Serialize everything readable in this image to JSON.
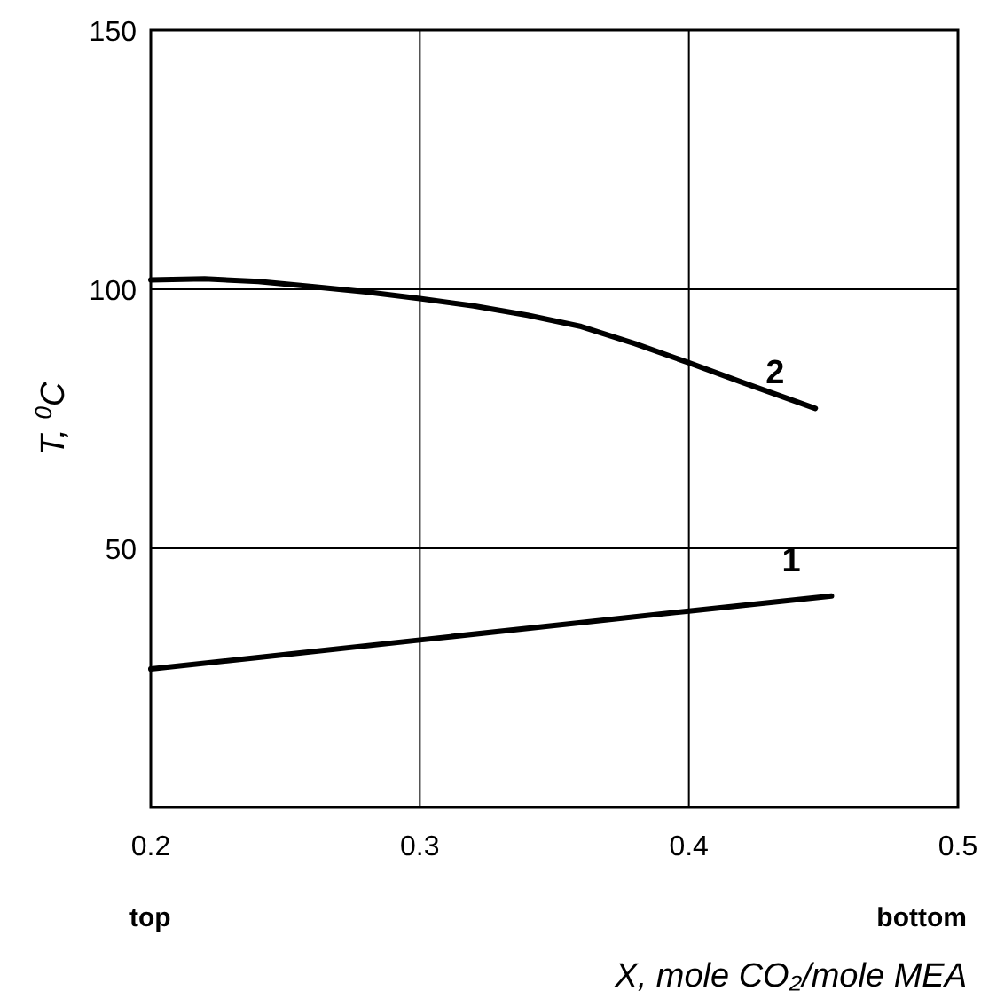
{
  "chart_data": {
    "type": "line",
    "xlabel": "X, mole CO₂/mole MEA",
    "ylabel": "T, $^{0}$C",
    "xlim": [
      0.2,
      0.5
    ],
    "xticks": [
      0.2,
      0.3,
      0.4,
      0.5
    ],
    "ylim": [
      0,
      150
    ],
    "yticks": [
      50,
      100,
      150
    ],
    "grid": true,
    "line_style": "solid",
    "marker": "none",
    "annotations": [
      "top",
      "bottom"
    ],
    "series": [
      {
        "name": "1",
        "color": "#000000",
        "x": [
          0.2,
          0.25,
          0.3,
          0.35,
          0.4,
          0.453
        ],
        "values": [
          26.7,
          29.5,
          32.3,
          35.1,
          37.9,
          40.8
        ]
      },
      {
        "name": "2",
        "color": "#000000",
        "x": [
          0.2,
          0.22,
          0.24,
          0.26,
          0.28,
          0.3,
          0.32,
          0.34,
          0.36,
          0.38,
          0.4,
          0.42,
          0.447
        ],
        "values": [
          101.8,
          102,
          101.5,
          100.5,
          99.5,
          98.2,
          96.8,
          95,
          92.8,
          89.5,
          85.8,
          82,
          77
        ]
      }
    ]
  }
}
